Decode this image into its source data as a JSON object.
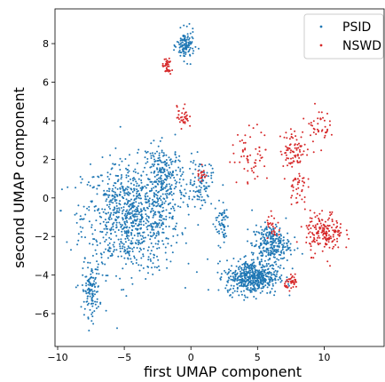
{
  "chart_data": {
    "type": "scatter",
    "title": "",
    "xlabel": "first UMAP component",
    "ylabel": "second UMAP component",
    "xlim": [
      -10.2,
      14.5
    ],
    "ylim": [
      -7.7,
      9.8
    ],
    "xticks": [
      -10,
      -5,
      0,
      5,
      10
    ],
    "yticks": [
      -6,
      -4,
      -2,
      0,
      2,
      4,
      6,
      8
    ],
    "grid": false,
    "legend": {
      "placement": "top-right"
    },
    "series": [
      {
        "name": "PSID",
        "color": "#1f77b4",
        "clusters": [
          {
            "cx": -4.5,
            "cy": -1.0,
            "sx": 3.3,
            "sy": 2.6,
            "n": 900
          },
          {
            "cx": -7.5,
            "cy": -4.8,
            "sx": 0.6,
            "sy": 1.2,
            "n": 120
          },
          {
            "cx": -2.0,
            "cy": 1.0,
            "sx": 1.3,
            "sy": 1.6,
            "n": 220
          },
          {
            "cx": -0.4,
            "cy": 7.9,
            "sx": 0.6,
            "sy": 0.7,
            "n": 120
          },
          {
            "cx": 0.7,
            "cy": 0.8,
            "sx": 0.8,
            "sy": 1.1,
            "n": 90
          },
          {
            "cx": 4.6,
            "cy": -4.1,
            "sx": 1.8,
            "sy": 0.8,
            "n": 520
          },
          {
            "cx": 6.0,
            "cy": -2.4,
            "sx": 1.3,
            "sy": 0.9,
            "n": 260
          },
          {
            "cx": 2.3,
            "cy": -1.3,
            "sx": 0.5,
            "sy": 1.0,
            "n": 60
          }
        ]
      },
      {
        "name": "NSWD",
        "color": "#d62728",
        "clusters": [
          {
            "cx": -1.8,
            "cy": 6.8,
            "sx": 0.3,
            "sy": 0.4,
            "n": 40
          },
          {
            "cx": -0.6,
            "cy": 4.2,
            "sx": 0.4,
            "sy": 0.5,
            "n": 35
          },
          {
            "cx": 0.8,
            "cy": 1.3,
            "sx": 0.3,
            "sy": 0.6,
            "n": 20
          },
          {
            "cx": 4.5,
            "cy": 2.2,
            "sx": 1.3,
            "sy": 1.3,
            "n": 60
          },
          {
            "cx": 7.8,
            "cy": 2.5,
            "sx": 1.0,
            "sy": 0.9,
            "n": 80
          },
          {
            "cx": 9.5,
            "cy": 3.8,
            "sx": 0.8,
            "sy": 0.8,
            "n": 40
          },
          {
            "cx": 8.0,
            "cy": 0.6,
            "sx": 0.6,
            "sy": 0.8,
            "n": 40
          },
          {
            "cx": 10.0,
            "cy": -1.8,
            "sx": 1.3,
            "sy": 1.0,
            "n": 180
          },
          {
            "cx": 7.6,
            "cy": -4.4,
            "sx": 0.5,
            "sy": 0.3,
            "n": 40
          },
          {
            "cx": 6.2,
            "cy": -1.5,
            "sx": 0.5,
            "sy": 0.6,
            "n": 25
          }
        ]
      }
    ]
  }
}
